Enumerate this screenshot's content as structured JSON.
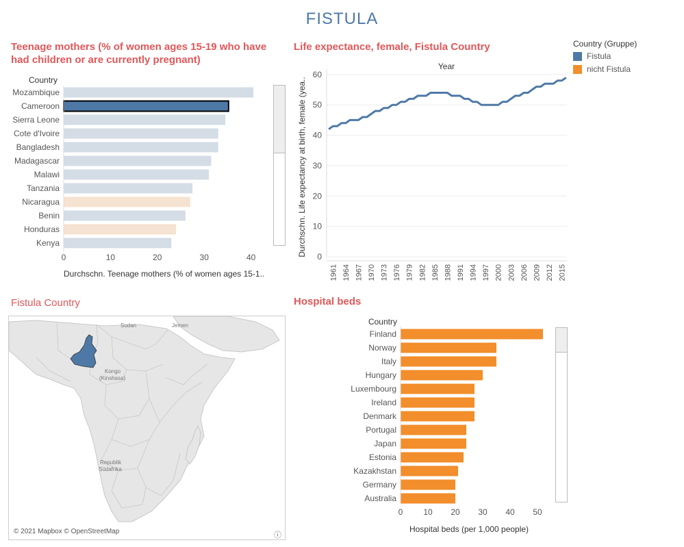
{
  "dashboard": {
    "title": "FISTULA"
  },
  "colors": {
    "fistula": "#4e79a7",
    "nicht_fistula": "#f28e2b",
    "title_red": "#e15759"
  },
  "legend": {
    "title": "Country (Gruppe)",
    "items": [
      {
        "label": "Fistula",
        "color": "#4e79a7"
      },
      {
        "label": "nicht Fistula",
        "color": "#f28e2b"
      }
    ]
  },
  "teen_sheet": {
    "title": "Teenage mothers (% of women ages 15-19 who have had children or are currently pregnant)"
  },
  "life_sheet": {
    "title": "Life expectance, female, Fistula Country"
  },
  "map_sheet": {
    "title": "Fistula Country",
    "attribution": "© 2021 Mapbox © OpenStreetMap",
    "labels": {
      "sudan": "Sudan",
      "jemen": "Jemen",
      "kongo_1": "Kongo",
      "kongo_2": "(Kinshasa)",
      "sa_1": "Republik",
      "sa_2": "Südafrika"
    }
  },
  "hosp_sheet": {
    "title": "Hospital beds"
  },
  "chart_data": [
    {
      "type": "bar",
      "title": "Teenage mothers (% of women ages 15-19 who have had children or are currently pregnant)",
      "row_header": "Country",
      "xlabel": "Durchschn. Teenage mothers (% of women ages 15-1..",
      "categories": [
        "Mozambique",
        "Cameroon",
        "Sierra Leone",
        "Cote d'Ivoire",
        "Bangladesh",
        "Madagascar",
        "Malawi",
        "Tanzania",
        "Nicaragua",
        "Benin",
        "Honduras",
        "Kenya"
      ],
      "values": [
        40.5,
        35.2,
        34.5,
        33.0,
        33.0,
        31.5,
        31.0,
        27.5,
        27.0,
        26.0,
        24.0,
        23.0
      ],
      "groups": [
        "Fistula",
        "Fistula",
        "Fistula",
        "Fistula",
        "Fistula",
        "Fistula",
        "Fistula",
        "Fistula",
        "nicht Fistula",
        "Fistula",
        "nicht Fistula",
        "Fistula"
      ],
      "highlighted": "Cameroon",
      "xlim": [
        0,
        44
      ],
      "xticks": [
        0,
        10,
        20,
        30,
        40
      ]
    },
    {
      "type": "line",
      "title": "Life expectance, female, Fistula Country",
      "xlabel": "Year",
      "ylabel": "Durchschn. Life expectancy at birth, female (yea..",
      "series": [
        {
          "name": "Fistula",
          "x": [
            1960,
            1961,
            1962,
            1963,
            1964,
            1965,
            1966,
            1967,
            1968,
            1969,
            1970,
            1971,
            1972,
            1973,
            1974,
            1975,
            1976,
            1977,
            1978,
            1979,
            1980,
            1981,
            1982,
            1983,
            1984,
            1985,
            1986,
            1987,
            1988,
            1989,
            1990,
            1991,
            1992,
            1993,
            1994,
            1995,
            1996,
            1997,
            1998,
            1999,
            2000,
            2001,
            2002,
            2003,
            2004,
            2005,
            2006,
            2007,
            2008,
            2009,
            2010,
            2011,
            2012,
            2013,
            2014,
            2015,
            2016
          ],
          "y": [
            42,
            43,
            43,
            44,
            44,
            45,
            45,
            45,
            46,
            46,
            47,
            48,
            48,
            49,
            49,
            50,
            50,
            51,
            51,
            52,
            52,
            53,
            53,
            53,
            54,
            54,
            54,
            54,
            54,
            53,
            53,
            53,
            52,
            52,
            51,
            51,
            50,
            50,
            50,
            50,
            50,
            51,
            51,
            52,
            53,
            53,
            54,
            54,
            55,
            56,
            56,
            57,
            57,
            57,
            58,
            58,
            59
          ]
        }
      ],
      "xticks": [
        1961,
        1964,
        1967,
        1970,
        1973,
        1976,
        1979,
        1982,
        1985,
        1988,
        1991,
        1994,
        1997,
        2000,
        2003,
        2006,
        2009,
        2012,
        2015
      ],
      "yticks": [
        0,
        10,
        20,
        30,
        40,
        50,
        60
      ],
      "ylim": [
        0,
        62
      ],
      "xlim": [
        1959.5,
        2016.2
      ]
    },
    {
      "type": "bar",
      "title": "Hospital beds",
      "row_header": "Country",
      "xlabel": "Hospital beds (per 1,000 people)",
      "categories": [
        "Finland",
        "Norway",
        "Italy",
        "Hungary",
        "Luxembourg",
        "Ireland",
        "Denmark",
        "Portugal",
        "Japan",
        "Estonia",
        "Kazakhstan",
        "Germany",
        "Australia"
      ],
      "values": [
        52,
        35,
        35,
        30,
        27,
        27,
        27,
        24,
        24,
        23,
        21,
        20,
        20
      ],
      "groups": [
        "nicht Fistula",
        "nicht Fistula",
        "nicht Fistula",
        "nicht Fistula",
        "nicht Fistula",
        "nicht Fistula",
        "nicht Fistula",
        "nicht Fistula",
        "nicht Fistula",
        "nicht Fistula",
        "nicht Fistula",
        "nicht Fistula",
        "nicht Fistula"
      ],
      "xlim": [
        0,
        56
      ],
      "xticks": [
        0,
        10,
        20,
        30,
        40,
        50
      ]
    }
  ]
}
